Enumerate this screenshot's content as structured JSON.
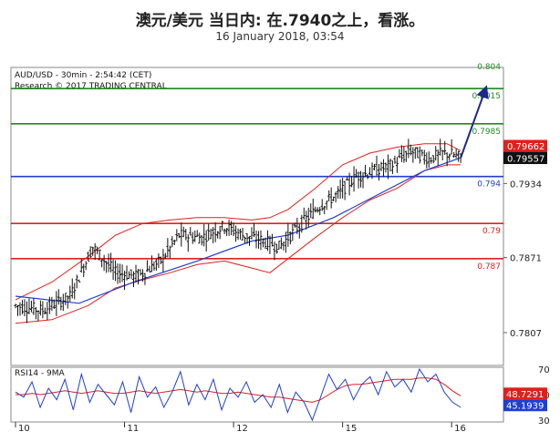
{
  "header": {
    "title": "澳元/美元 当日内: 在.7940之上，看涨。",
    "subtitle": "16 January 2018, 03:54"
  },
  "chart_data": {
    "type": "candlestick",
    "info_line1": "AUD/USD - 30min - 2:54:42 (CET)",
    "info_line2": "Research © 2017 TRADING CENTRAL",
    "price_ticks": [
      "0.7968",
      "0.7934",
      "0.7871",
      "0.7807"
    ],
    "ylim": [
      0.7779,
      0.8033
    ],
    "x_ticks": [
      "10",
      "11",
      "12",
      "15",
      "16"
    ],
    "levels": [
      {
        "label": "0.804",
        "value": 0.804,
        "color": "#1f8b1f"
      },
      {
        "label": "0.8015",
        "value": 0.8015,
        "color": "#1f8b1f"
      },
      {
        "label": "0.7985",
        "value": 0.7985,
        "color": "#1f8b1f"
      },
      {
        "label": "0.794",
        "value": 0.794,
        "color": "#1f3fd0"
      },
      {
        "label": "0.79",
        "value": 0.79,
        "color": "#e0201b"
      },
      {
        "label": "0.787",
        "value": 0.787,
        "color": "#e0201b"
      }
    ],
    "price_tags": [
      {
        "label": "0.79662",
        "value": 0.79662,
        "color": "#e0201b"
      },
      {
        "label": "0.79561",
        "value": 0.79561,
        "color": "#1f3fd0"
      },
      {
        "label": "0.79557",
        "value": 0.79557,
        "color": "#111111"
      }
    ],
    "close_path": [
      [
        0,
        0.783
      ],
      [
        6,
        0.7826
      ],
      [
        12,
        0.7838
      ],
      [
        17,
        0.788
      ],
      [
        22,
        0.7858
      ],
      [
        27,
        0.7855
      ],
      [
        32,
        0.7868
      ],
      [
        36,
        0.789
      ],
      [
        41,
        0.7888
      ],
      [
        46,
        0.7898
      ],
      [
        50,
        0.789
      ],
      [
        54,
        0.7886
      ],
      [
        58,
        0.788
      ],
      [
        63,
        0.79
      ],
      [
        67,
        0.7915
      ],
      [
        71,
        0.7925
      ],
      [
        75,
        0.794
      ],
      [
        79,
        0.7945
      ],
      [
        83,
        0.795
      ],
      [
        87,
        0.7962
      ],
      [
        91,
        0.7955
      ],
      [
        94,
        0.796
      ],
      [
        96,
        0.7959
      ],
      [
        98,
        0.7956
      ]
    ],
    "projection": [
      [
        98,
        0.7956
      ],
      [
        103.5,
        0.8015
      ]
    ],
    "ma_line": [
      [
        0,
        0.7838
      ],
      [
        14,
        0.7832
      ],
      [
        26,
        0.785
      ],
      [
        40,
        0.7868
      ],
      [
        52,
        0.7885
      ],
      [
        60,
        0.789
      ],
      [
        70,
        0.7905
      ],
      [
        80,
        0.7925
      ],
      [
        90,
        0.7945
      ],
      [
        98,
        0.7956
      ]
    ],
    "bb_upper": [
      [
        0,
        0.7835
      ],
      [
        8,
        0.785
      ],
      [
        16,
        0.7872
      ],
      [
        22,
        0.789
      ],
      [
        28,
        0.79
      ],
      [
        34,
        0.7903
      ],
      [
        40,
        0.7905
      ],
      [
        46,
        0.7905
      ],
      [
        52,
        0.7903
      ],
      [
        56,
        0.7905
      ],
      [
        60,
        0.7912
      ],
      [
        66,
        0.793
      ],
      [
        72,
        0.795
      ],
      [
        78,
        0.796
      ],
      [
        84,
        0.7965
      ],
      [
        90,
        0.7968
      ],
      [
        95,
        0.7968
      ],
      [
        98,
        0.7962
      ]
    ],
    "bb_lower": [
      [
        0,
        0.7815
      ],
      [
        8,
        0.7818
      ],
      [
        16,
        0.783
      ],
      [
        22,
        0.7845
      ],
      [
        28,
        0.7852
      ],
      [
        34,
        0.7858
      ],
      [
        40,
        0.7865
      ],
      [
        46,
        0.7868
      ],
      [
        52,
        0.7862
      ],
      [
        56,
        0.7858
      ],
      [
        60,
        0.787
      ],
      [
        66,
        0.7888
      ],
      [
        72,
        0.7905
      ],
      [
        78,
        0.792
      ],
      [
        84,
        0.793
      ],
      [
        90,
        0.7945
      ],
      [
        95,
        0.795
      ],
      [
        98,
        0.795
      ]
    ],
    "rsi": {
      "label": "RSI14 - 9MA",
      "ylim": [
        30,
        70
      ],
      "ticks": [
        "70",
        "50",
        "30"
      ],
      "tags": [
        {
          "label": "48.7291",
          "value": 48.7291,
          "color": "#e0201b"
        },
        {
          "label": "45.1939",
          "value": 45.1939,
          "color": "#1f3fd0"
        }
      ],
      "rsi_values": [
        52,
        48,
        60,
        40,
        55,
        46,
        62,
        38,
        66,
        44,
        58,
        50,
        42,
        60,
        36,
        64,
        48,
        56,
        40,
        52,
        68,
        42,
        58,
        46,
        62,
        38,
        55,
        48,
        60,
        44,
        50,
        40,
        58,
        36,
        52,
        44,
        30,
        48,
        66,
        54,
        62,
        46,
        58,
        64,
        50,
        68,
        56,
        62,
        52,
        70,
        60,
        66,
        52,
        44,
        40
      ],
      "ma_values": [
        50,
        50,
        51,
        50,
        51,
        52,
        53,
        52,
        51,
        52,
        53,
        52,
        51,
        51,
        52,
        53,
        52,
        51,
        52,
        53,
        54,
        53,
        52,
        53,
        52,
        51,
        51,
        52,
        51,
        50,
        49,
        48,
        48,
        47,
        46,
        45,
        44,
        46,
        50,
        54,
        57,
        58,
        58,
        59,
        60,
        61,
        62,
        62,
        62,
        63,
        63,
        62,
        58,
        53,
        49
      ]
    }
  }
}
